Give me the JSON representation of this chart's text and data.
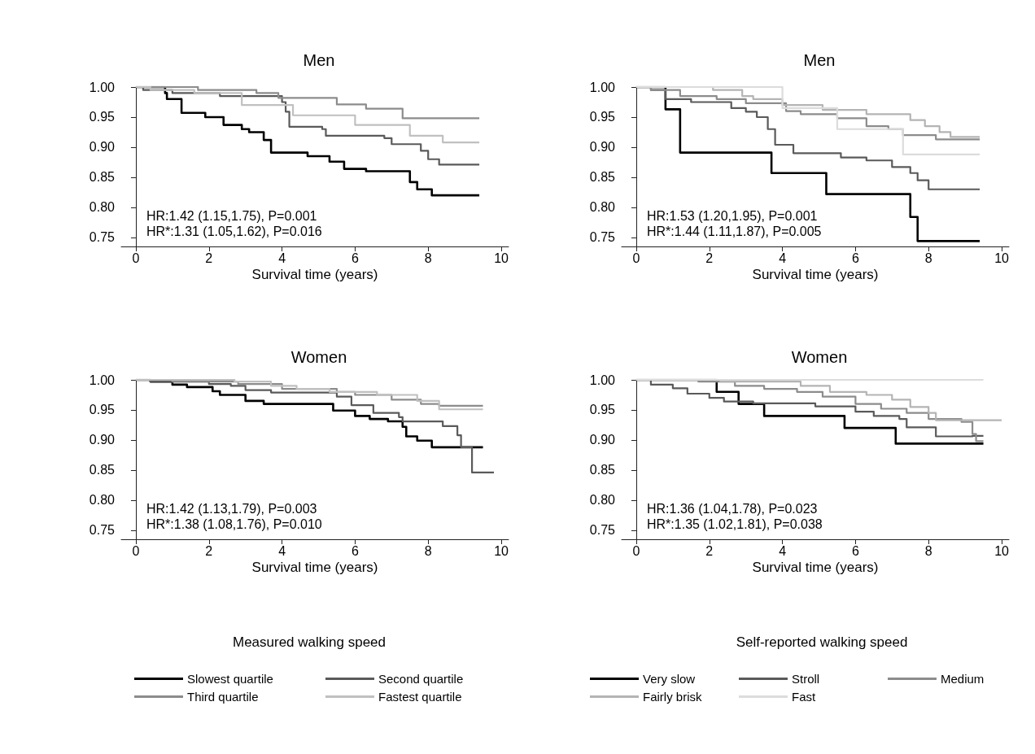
{
  "chart_data": [
    {
      "type": "step",
      "title": "Men",
      "xlabel": "Survival time (years)",
      "xlim": [
        -0.4,
        10.2
      ],
      "xticks": [
        0,
        2,
        4,
        6,
        8,
        10
      ],
      "ylim": [
        0.735,
        1.0
      ],
      "yticks": [
        {
          "value": 0.75,
          "label": "0.75"
        },
        {
          "value": 0.8,
          "label": "0.80"
        },
        {
          "value": 0.85,
          "label": "0.85"
        },
        {
          "value": 0.9,
          "label": "0.90"
        },
        {
          "value": 0.95,
          "label": "0.95"
        },
        {
          "value": 1.0,
          "label": "1.00"
        }
      ],
      "annotations": [
        "HR:1.42 (1.15,1.75), P=0.001",
        "HR*:1.31 (1.05,1.62), P=0.016"
      ],
      "legend": false,
      "series": [
        {
          "color": "#000000",
          "x": [
            0,
            0.8,
            0.85,
            1.25,
            1.9,
            2.4,
            2.9,
            3.1,
            3.5,
            3.7,
            4.7,
            5.3,
            5.7,
            6.3,
            7.5,
            7.7,
            8.1,
            9.4
          ],
          "values": [
            1.0,
            0.99,
            0.98,
            0.957,
            0.95,
            0.937,
            0.93,
            0.925,
            0.912,
            0.891,
            0.885,
            0.876,
            0.864,
            0.86,
            0.842,
            0.83,
            0.82,
            0.82
          ]
        },
        {
          "color": "#5a5a5a",
          "x": [
            0,
            0.2,
            1.0,
            2.3,
            4.0,
            4.1,
            4.2,
            5.1,
            5.2,
            6.8,
            7.0,
            7.8,
            8.0,
            8.3,
            9.4
          ],
          "values": [
            1.0,
            0.995,
            0.99,
            0.985,
            0.975,
            0.959,
            0.934,
            0.93,
            0.919,
            0.915,
            0.905,
            0.894,
            0.88,
            0.871,
            0.871
          ]
        },
        {
          "color": "#8c8c8c",
          "x": [
            0,
            1.7,
            3.3,
            3.9,
            5.5,
            6.3,
            7.3,
            9.4
          ],
          "values": [
            1.0,
            0.995,
            0.99,
            0.982,
            0.971,
            0.964,
            0.948,
            0.948
          ]
        },
        {
          "color": "#c0c0c0",
          "x": [
            0,
            0.4,
            1.6,
            2.9,
            4.3,
            6.0,
            7.5,
            8.4,
            9.4
          ],
          "values": [
            1.0,
            0.995,
            0.99,
            0.97,
            0.953,
            0.937,
            0.919,
            0.908,
            0.908
          ]
        }
      ]
    },
    {
      "type": "step",
      "title": "Men",
      "xlabel": "Survival time (years)",
      "xlim": [
        -0.4,
        10.2
      ],
      "xticks": [
        0,
        2,
        4,
        6,
        8,
        10
      ],
      "ylim": [
        0.735,
        1.0
      ],
      "yticks": [
        {
          "value": 0.75,
          "label": "0.75"
        },
        {
          "value": 0.8,
          "label": "0.80"
        },
        {
          "value": 0.85,
          "label": "0.85"
        },
        {
          "value": 0.9,
          "label": "0.90"
        },
        {
          "value": 0.95,
          "label": "0.95"
        },
        {
          "value": 1.0,
          "label": "1.00"
        }
      ],
      "annotations": [
        "HR:1.53 (1.20,1.95), P=0.001",
        "HR*:1.44 (1.11,1.87), P=0.005"
      ],
      "legend": false,
      "series": [
        {
          "color": "#000000",
          "x": [
            0,
            0.8,
            1.2,
            3.7,
            5.2,
            7.5,
            7.7,
            9.4
          ],
          "values": [
            1.0,
            0.963,
            0.891,
            0.857,
            0.822,
            0.784,
            0.744,
            0.744
          ]
        },
        {
          "color": "#5a5a5a",
          "x": [
            0,
            0.4,
            0.8,
            1.5,
            2.6,
            3.0,
            3.3,
            3.6,
            3.8,
            4.3,
            5.6,
            6.3,
            7.0,
            7.5,
            7.7,
            8.0,
            9.4
          ],
          "values": [
            1.0,
            0.995,
            0.98,
            0.975,
            0.965,
            0.959,
            0.95,
            0.93,
            0.904,
            0.89,
            0.883,
            0.878,
            0.867,
            0.857,
            0.845,
            0.83,
            0.83
          ]
        },
        {
          "color": "#8c8c8c",
          "x": [
            0,
            0.4,
            1.2,
            2.2,
            3.0,
            4.1,
            4.5,
            5.5,
            6.3,
            6.9,
            7.3,
            8.2,
            9.4
          ],
          "values": [
            1.0,
            0.995,
            0.985,
            0.98,
            0.973,
            0.96,
            0.955,
            0.948,
            0.935,
            0.93,
            0.92,
            0.913,
            0.913
          ]
        },
        {
          "color": "#b4b4b4",
          "x": [
            0,
            2.1,
            2.9,
            3.2,
            4.0,
            5.1,
            6.3,
            7.5,
            7.9,
            8.3,
            8.6,
            9.4
          ],
          "values": [
            1.0,
            0.995,
            0.985,
            0.98,
            0.97,
            0.962,
            0.955,
            0.945,
            0.935,
            0.925,
            0.917,
            0.917
          ]
        },
        {
          "color": "#dcdcdc",
          "x": [
            0,
            4.0,
            5.5,
            7.3,
            9.4
          ],
          "values": [
            1.0,
            0.965,
            0.93,
            0.888,
            0.888
          ]
        }
      ]
    },
    {
      "type": "step",
      "title": "Women",
      "xlabel": "Survival time (years)",
      "xlim": [
        -0.4,
        10.2
      ],
      "xticks": [
        0,
        2,
        4,
        6,
        8,
        10
      ],
      "ylim": [
        0.735,
        1.0
      ],
      "yticks": [
        {
          "value": 0.75,
          "label": "0.75"
        },
        {
          "value": 0.8,
          "label": "0.80"
        },
        {
          "value": 0.85,
          "label": "0.85"
        },
        {
          "value": 0.9,
          "label": "0.90"
        },
        {
          "value": 0.95,
          "label": "0.95"
        },
        {
          "value": 1.0,
          "label": "1.00"
        }
      ],
      "annotations": [
        "HR:1.42 (1.13,1.79), P=0.003",
        "HR*:1.38 (1.08,1.76), P=0.010"
      ],
      "legend": "bottom",
      "legend_title": "Measured walking speed",
      "series": [
        {
          "name": "Slowest quartile",
          "color": "#000000",
          "x": [
            0,
            0.4,
            1.0,
            1.4,
            2.1,
            2.3,
            3.0,
            3.5,
            5.4,
            6.0,
            6.4,
            6.9,
            7.3,
            7.4,
            7.7,
            8.1,
            9.5
          ],
          "values": [
            1.0,
            0.997,
            0.992,
            0.988,
            0.981,
            0.975,
            0.965,
            0.96,
            0.949,
            0.94,
            0.935,
            0.931,
            0.922,
            0.906,
            0.899,
            0.888,
            0.888
          ]
        },
        {
          "name": "Second quartile",
          "color": "#5a5a5a",
          "x": [
            0,
            0.4,
            2.0,
            2.6,
            3.0,
            3.7,
            5.5,
            5.9,
            6.5,
            7.2,
            7.3,
            8.4,
            8.8,
            8.9,
            9.2,
            9.8
          ],
          "values": [
            1.0,
            0.997,
            0.993,
            0.99,
            0.983,
            0.979,
            0.972,
            0.958,
            0.945,
            0.938,
            0.931,
            0.923,
            0.908,
            0.888,
            0.846,
            0.846
          ]
        },
        {
          "name": "Third quartile",
          "color": "#8c8c8c",
          "x": [
            0,
            1.0,
            2.8,
            4.0,
            5.5,
            6.0,
            7.0,
            7.8,
            8.3,
            9.5
          ],
          "values": [
            1.0,
            0.997,
            0.993,
            0.985,
            0.98,
            0.975,
            0.967,
            0.96,
            0.957,
            0.957
          ]
        },
        {
          "name": "Fastest quartile",
          "color": "#c0c0c0",
          "x": [
            0,
            2.7,
            3.7,
            4.4,
            5.3,
            6.6,
            7.7,
            8.3,
            9.5
          ],
          "values": [
            1.0,
            0.997,
            0.99,
            0.985,
            0.98,
            0.975,
            0.965,
            0.951,
            0.951
          ]
        }
      ]
    },
    {
      "type": "step",
      "title": "Women",
      "xlabel": "Survival time (years)",
      "xlim": [
        -0.4,
        10.2
      ],
      "xticks": [
        0,
        2,
        4,
        6,
        8,
        10
      ],
      "ylim": [
        0.735,
        1.0
      ],
      "yticks": [
        {
          "value": 0.75,
          "label": "0.75"
        },
        {
          "value": 0.8,
          "label": "0.80"
        },
        {
          "value": 0.85,
          "label": "0.85"
        },
        {
          "value": 0.9,
          "label": "0.90"
        },
        {
          "value": 0.95,
          "label": "0.95"
        },
        {
          "value": 1.0,
          "label": "1.00"
        }
      ],
      "annotations": [
        "HR:1.36 (1.04,1.78), P=0.023",
        "HR*:1.35 (1.02,1.81), P=0.038"
      ],
      "legend": "bottom",
      "legend_title": "Self-reported walking speed",
      "series": [
        {
          "name": "Very slow",
          "color": "#000000",
          "x": [
            0,
            2.2,
            2.8,
            3.5,
            5.7,
            7.1,
            9.5
          ],
          "values": [
            1.0,
            0.98,
            0.96,
            0.94,
            0.92,
            0.894,
            0.894
          ]
        },
        {
          "name": "Stroll",
          "color": "#5a5a5a",
          "x": [
            0,
            0.4,
            1.0,
            1.4,
            2.0,
            2.4,
            3.2,
            4.9,
            6.0,
            6.5,
            7.2,
            7.4,
            8.2,
            9.2,
            9.5
          ],
          "values": [
            1.0,
            0.992,
            0.986,
            0.977,
            0.97,
            0.964,
            0.961,
            0.956,
            0.947,
            0.94,
            0.935,
            0.921,
            0.906,
            0.907,
            0.907
          ]
        },
        {
          "name": "Medium",
          "color": "#8c8c8c",
          "x": [
            0,
            1.7,
            2.7,
            3.5,
            4.4,
            5.1,
            6.0,
            6.7,
            7.4,
            8.0,
            8.9,
            9.2,
            9.3,
            9.5
          ],
          "values": [
            1.0,
            0.997,
            0.99,
            0.985,
            0.98,
            0.972,
            0.96,
            0.952,
            0.945,
            0.935,
            0.93,
            0.91,
            0.898,
            0.898
          ]
        },
        {
          "name": "Fairly brisk",
          "color": "#b4b4b4",
          "x": [
            0,
            2.3,
            4.5,
            5.3,
            6.3,
            7.0,
            7.5,
            8.0,
            8.2,
            10.0
          ],
          "values": [
            1.0,
            0.997,
            0.99,
            0.98,
            0.975,
            0.967,
            0.955,
            0.945,
            0.933,
            0.933
          ]
        },
        {
          "name": "Fast",
          "color": "#dcdcdc",
          "x": [
            0,
            9.5
          ],
          "values": [
            1.0,
            1.0
          ]
        }
      ]
    }
  ]
}
